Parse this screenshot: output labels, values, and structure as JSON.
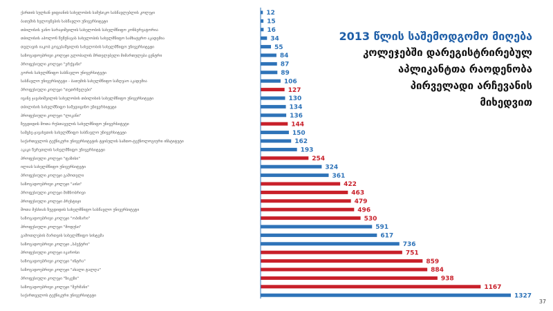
{
  "slide": {
    "title_lines": [
      "2013 წლის საშემოდგომო მიღება",
      "კოლეჯებში დარეგისტრირებულ",
      "აპლიკანტთა რაოდენობა",
      "პირველადი არჩევანის",
      "მიხედვით"
    ],
    "page_number": "37"
  },
  "chart_data": {
    "type": "bar",
    "orientation": "horizontal",
    "colors": {
      "blue": "#2e73b8",
      "red": "#c8202a",
      "axis": "#2e73b8"
    },
    "categories": [
      "ქართის სულხან ყიფიანის სახელობის სამუსიკო სასწავლებლის კოლეჯი",
      "ბათუმის ხელოვნების სასწავლო უნივერსიტეტი",
      "თბილისის ვანო სარაჯიშვილის სახელობის სახელმწიფო კონსერვატორია",
      "თბილისის აპოლონ წუწუნავას სახელობის სახელმწიფო სამხატვრო აკადემია",
      "თელავის იაკობ გოგებაშვილის სახელობის სახელმწიფო უნივერსიტეტი",
      "საზოგადოებრივი კოლეჯი გლობალის მრთელებელი მიმართულება ცენტრი",
      "პროფესიული კოლეჯი \"ერქვანი\"",
      "გორის სახელმწიფო სასწავლო უნივერსიტეტი",
      "სასწავლო უნივერსიტეტი - ბათუმის სახელმწიფო საზღვაო აკადემია",
      "პროფესიული კოლეჯი \"თეთრნულები\"",
      "ივანე ჯავახიშვილის სახელობის თბილისის სახელმწიფო უნივერსიტეტი",
      "თბილისის სახელმწიფო სამედიცინო უნივერსიტეტი",
      "პროფესიული კოლეჯი \"ლიკანი\"",
      "ზუგდიდის შოთა რუსთაველის სახელმწიფო უნივერსიტეტი",
      "სამცხე-ჯავახეთის სახელმწიფო სასწავლო უნივერსიტეტი",
      "საქართველოს ტექნიკური უნივერსიტეტის ტყიბულის სამთო-ტექნოლოგიური ინსტიტუტი",
      "აკაკი წერეთლის სახელმწიფო უნივერსიტეტი",
      "პროფესიული კოლეჯი \"ფაზისი\"",
      "ილიას სახელმწიფო უნივერსიტეტი",
      "პროფესიული კოლეჯი გამოთელი",
      "საზოგადოებრივი კოლეჯი \"აისი\"",
      "პროფესიული კოლეჯი მიზნობრივი",
      "პროფესიული კოლეჯი პრესტიჟი",
      "შოთა მესხიას ზუგდიდის სახელმწიფო სასწავლო უნივერსიტეტი",
      "საზოგადოებრივი კოლეჯი \"ოპიზარი\"",
      "პროფესიული კოლეჯი \"მოდუსი\"",
      "გამოთლების მართვის სახელმწიფო სისტემა",
      "საზოგადოებრივი კოლეჯი „სპექტრი\"",
      "პროფესიული კოლეჯი იკაროსი",
      "საზოგადოებრივი კოლეჯი \"ინტრა\"",
      "საზოგადოებრივი კოლეჯი \"ახალი ტალღა\"",
      "პროფესიული კოლეჯი \"ზიკეზი\"",
      "საზოგადოებრივი კოლეჯი \"შერმანი\"",
      "საქართველოს ტექნიკური უნივერსიტეტი"
    ],
    "values": [
      12,
      15,
      16,
      34,
      55,
      84,
      87,
      89,
      106,
      127,
      130,
      134,
      136,
      144,
      150,
      162,
      193,
      254,
      324,
      361,
      422,
      463,
      479,
      496,
      530,
      591,
      617,
      736,
      751,
      859,
      884,
      938,
      1167,
      1327
    ],
    "bar_colors": [
      "blue",
      "blue",
      "blue",
      "blue",
      "blue",
      "blue",
      "blue",
      "blue",
      "blue",
      "red",
      "blue",
      "blue",
      "blue",
      "red",
      "blue",
      "blue",
      "blue",
      "red",
      "blue",
      "blue",
      "red",
      "red",
      "red",
      "red",
      "red",
      "blue",
      "blue",
      "blue",
      "red",
      "red",
      "red",
      "red",
      "red",
      "blue"
    ],
    "xlim": [
      0,
      1327
    ],
    "grid": false,
    "legend": "none"
  }
}
